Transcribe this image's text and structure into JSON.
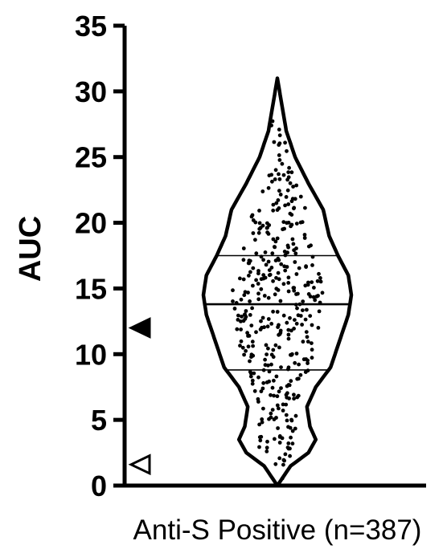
{
  "chart_data": {
    "type": "violin",
    "ylabel": "AUC",
    "xlabel": "",
    "categories": [
      "Anti-S Positive (n=387)"
    ],
    "ylim": [
      0,
      35
    ],
    "yticks": [
      0,
      5,
      10,
      15,
      20,
      25,
      30,
      35
    ],
    "ytick_labels": [
      "0",
      "5",
      "10",
      "15",
      "20",
      "25",
      "30",
      "35"
    ],
    "n": 387,
    "quartiles": {
      "q1": 8.8,
      "median": 13.8,
      "q3": 17.5
    },
    "range": {
      "min": 0.3,
      "max": 31.0
    },
    "density_profile": [
      {
        "y": 0.0,
        "w": 0.0
      },
      {
        "y": 1.5,
        "w": 0.18
      },
      {
        "y": 2.5,
        "w": 0.42
      },
      {
        "y": 3.5,
        "w": 0.52
      },
      {
        "y": 4.5,
        "w": 0.44
      },
      {
        "y": 6.0,
        "w": 0.4
      },
      {
        "y": 7.5,
        "w": 0.52
      },
      {
        "y": 9.0,
        "w": 0.72
      },
      {
        "y": 11.0,
        "w": 0.84
      },
      {
        "y": 13.0,
        "w": 0.96
      },
      {
        "y": 14.5,
        "w": 1.0
      },
      {
        "y": 16.0,
        "w": 0.96
      },
      {
        "y": 17.5,
        "w": 0.82
      },
      {
        "y": 19.0,
        "w": 0.7
      },
      {
        "y": 21.0,
        "w": 0.62
      },
      {
        "y": 23.0,
        "w": 0.42
      },
      {
        "y": 25.0,
        "w": 0.24
      },
      {
        "y": 27.0,
        "w": 0.12
      },
      {
        "y": 29.0,
        "w": 0.06
      },
      {
        "y": 31.0,
        "w": 0.0
      }
    ],
    "markers": [
      {
        "y": 12,
        "style": "filled-triangle"
      },
      {
        "y": 1.6,
        "style": "open-triangle"
      }
    ]
  }
}
